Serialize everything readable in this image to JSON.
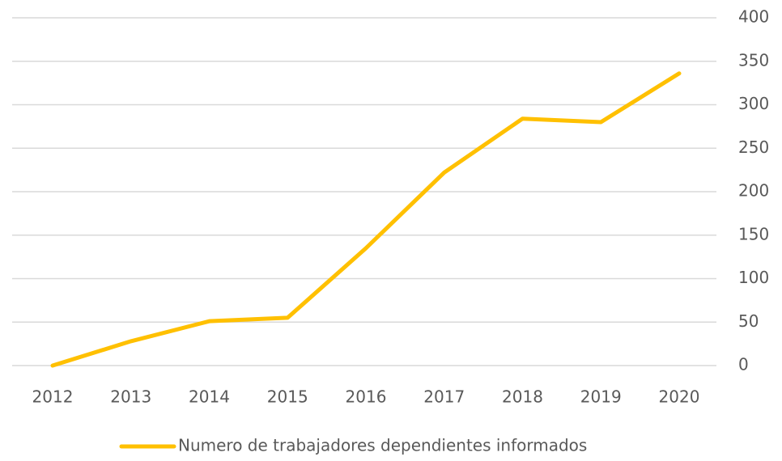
{
  "chart_data": {
    "type": "line",
    "categories": [
      "2012",
      "2013",
      "2014",
      "2015",
      "2016",
      "2017",
      "2018",
      "2019",
      "2020"
    ],
    "series": [
      {
        "name": "Numero de trabajadores dependientes informados",
        "color": "#ffc000",
        "values": [
          0,
          28,
          51,
          55,
          135,
          222,
          284,
          280,
          336
        ]
      }
    ],
    "ylim": [
      0,
      400
    ],
    "yticks": [
      0,
      50,
      100,
      150,
      200,
      250,
      300,
      350,
      400
    ],
    "y_axis_side": "right",
    "grid": true,
    "legend": "bottom"
  }
}
